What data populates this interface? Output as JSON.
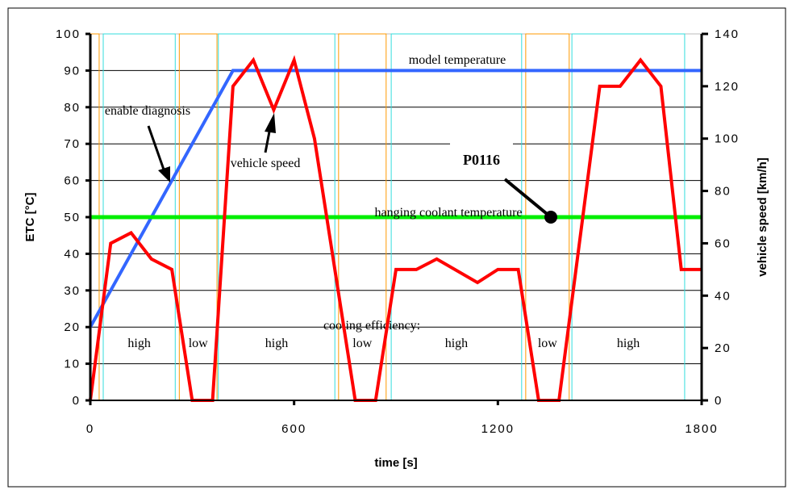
{
  "chart_data": {
    "type": "line",
    "title": "",
    "xlabel": "time [s]",
    "ylabel": "ETC [°C]",
    "y2label": "vehicle speed [km/h]",
    "xlim": [
      0,
      1800
    ],
    "ylim": [
      0,
      100
    ],
    "y2lim": [
      0,
      140
    ],
    "xticks": [
      0,
      600,
      1200,
      1800
    ],
    "yticks": [
      0,
      10,
      20,
      30,
      40,
      50,
      60,
      70,
      80,
      90,
      100
    ],
    "y2ticks": [
      0,
      20,
      40,
      60,
      80,
      100,
      120,
      140
    ],
    "grid": "horizontal",
    "colors": {
      "speed": "#ff0000",
      "model": "#3366ff",
      "hanging": "#00ee00",
      "high_box": "#33dddd",
      "low_box": "#ff9900"
    },
    "series": [
      {
        "name": "model temperature",
        "axis": "left",
        "x": [
          0,
          420,
          1800
        ],
        "y": [
          20,
          90,
          90
        ]
      },
      {
        "name": "hanging coolant temperature",
        "axis": "left",
        "x": [
          0,
          1800
        ],
        "y": [
          50,
          50
        ]
      },
      {
        "name": "vehicle speed",
        "axis": "right",
        "x": [
          0,
          60,
          120,
          180,
          240,
          300,
          360,
          420,
          480,
          540,
          600,
          660,
          780,
          840,
          900,
          960,
          1020,
          1140,
          1200,
          1260,
          1320,
          1380,
          1500,
          1560,
          1620,
          1680,
          1740,
          1800
        ],
        "y": [
          0,
          60,
          64,
          54,
          50,
          0,
          0,
          120,
          130,
          111,
          130,
          100,
          0,
          0,
          50,
          50,
          54,
          45,
          50,
          50,
          0,
          0,
          120,
          120,
          130,
          120,
          50,
          50
        ]
      }
    ],
    "cooling_label": "cooling efficiency:",
    "regions": [
      {
        "label": "",
        "type": "low",
        "start": 0,
        "end": 26
      },
      {
        "label": "high",
        "type": "high",
        "start": 38,
        "end": 250
      },
      {
        "label": "low",
        "type": "low",
        "start": 262,
        "end": 373
      },
      {
        "label": "high",
        "type": "high",
        "start": 377,
        "end": 720
      },
      {
        "label": "low",
        "type": "low",
        "start": 731,
        "end": 871
      },
      {
        "label": "high",
        "type": "high",
        "start": 886,
        "end": 1270
      },
      {
        "label": "low",
        "type": "low",
        "start": 1282,
        "end": 1410
      },
      {
        "label": "high",
        "type": "high",
        "start": 1418,
        "end": 1750
      }
    ],
    "annotations": [
      {
        "text": "model temperature"
      },
      {
        "text": "enable diagnosis"
      },
      {
        "text": "vehicle speed"
      },
      {
        "text": "P0116",
        "x": 1356,
        "y": 50
      },
      {
        "text": "hanging coolant temperature"
      }
    ]
  }
}
